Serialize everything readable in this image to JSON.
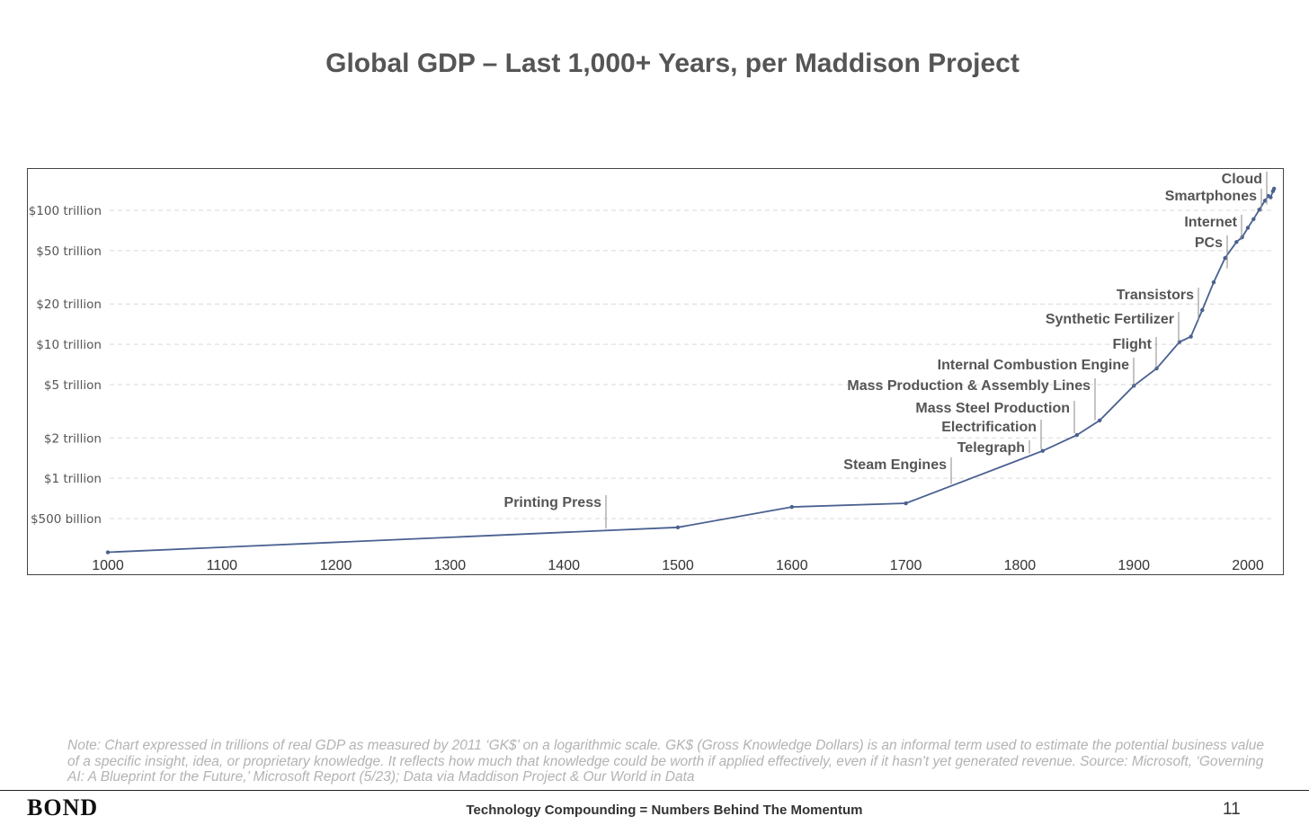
{
  "title": "Global GDP – Last 1,000+ Years, per Maddison Project",
  "chart_data": {
    "type": "line",
    "title": "Global GDP – Last 1,000+ Years, per Maddison Project",
    "y_scale": "log",
    "xlim": [
      1000,
      2024
    ],
    "ylim_trillion": [
      0.3,
      180
    ],
    "x_ticks": [
      "1000",
      "1100",
      "1200",
      "1300",
      "1400",
      "1500",
      "1600",
      "1700",
      "1800",
      "1900",
      "2000"
    ],
    "y_ticks": [
      {
        "value": 100,
        "label": "$100 trillion"
      },
      {
        "value": 50,
        "label": "$50 trillion"
      },
      {
        "value": 20,
        "label": "$20 trillion"
      },
      {
        "value": 10,
        "label": "$10 trillion"
      },
      {
        "value": 5,
        "label": "$5 trillion"
      },
      {
        "value": 2,
        "label": "$2 trillion"
      },
      {
        "value": 1,
        "label": "$1 trillion"
      },
      {
        "value": 0.5,
        "label": "$500 billion"
      }
    ],
    "grid": "horizontal dashed",
    "line_color": "#4a6190",
    "series": [
      {
        "points": [
          [
            1000,
            0.28
          ],
          [
            1500,
            0.43
          ],
          [
            1600,
            0.61
          ],
          [
            1700,
            0.65
          ],
          [
            1820,
            1.6
          ],
          [
            1850,
            2.1
          ],
          [
            1870,
            2.7
          ],
          [
            1900,
            4.9
          ],
          [
            1920,
            6.6
          ],
          [
            1940,
            10.4
          ],
          [
            1950,
            11.4
          ],
          [
            1960,
            18
          ],
          [
            1970,
            29
          ],
          [
            1980,
            44
          ],
          [
            1990,
            58
          ],
          [
            1995,
            63
          ],
          [
            2000,
            74
          ],
          [
            2005,
            86
          ],
          [
            2010,
            101
          ],
          [
            2015,
            118
          ],
          [
            2018,
            128
          ],
          [
            2020,
            125
          ],
          [
            2022,
            139
          ],
          [
            2023,
            145
          ]
        ]
      }
    ],
    "annotations": [
      {
        "label": "Printing Press",
        "year": 1440
      },
      {
        "label": "Steam Engines",
        "year": 1740
      },
      {
        "label": "Telegraph",
        "year": 1810
      },
      {
        "label": "Electrification",
        "year": 1820
      },
      {
        "label": "Mass Steel Production",
        "year": 1850
      },
      {
        "label": "Mass Production & Assembly Lines",
        "year": 1868
      },
      {
        "label": "Internal Combustion Engine",
        "year": 1898
      },
      {
        "label": "Flight",
        "year": 1918
      },
      {
        "label": "Synthetic Fertilizer",
        "year": 1938
      },
      {
        "label": "Transistors",
        "year": 1955
      },
      {
        "label": "PCs",
        "year": 1975
      },
      {
        "label": "Internet",
        "year": 1990
      },
      {
        "label": "Smartphones",
        "year": 2008
      },
      {
        "label": "Cloud",
        "year": 2012
      }
    ]
  },
  "note": "Note: Chart expressed in trillions of real GDP as measured by 2011 ‘GK$’ on a logarithmic scale. GK$ (Gross Knowledge Dollars) is an informal term used to estimate the potential business value of a specific insight, idea, or proprietary knowledge. It reflects how much that knowledge could be worth if applied effectively, even if it hasn't yet generated revenue. Source: Microsoft, ‘Governing AI: A Blueprint for the Future,’ Microsoft Report (5/23); Data via Maddison Project & Our World in Data",
  "footer": {
    "logo": "BOND",
    "title": "Technology Compounding = Numbers Behind The Momentum",
    "page_number": "11"
  }
}
